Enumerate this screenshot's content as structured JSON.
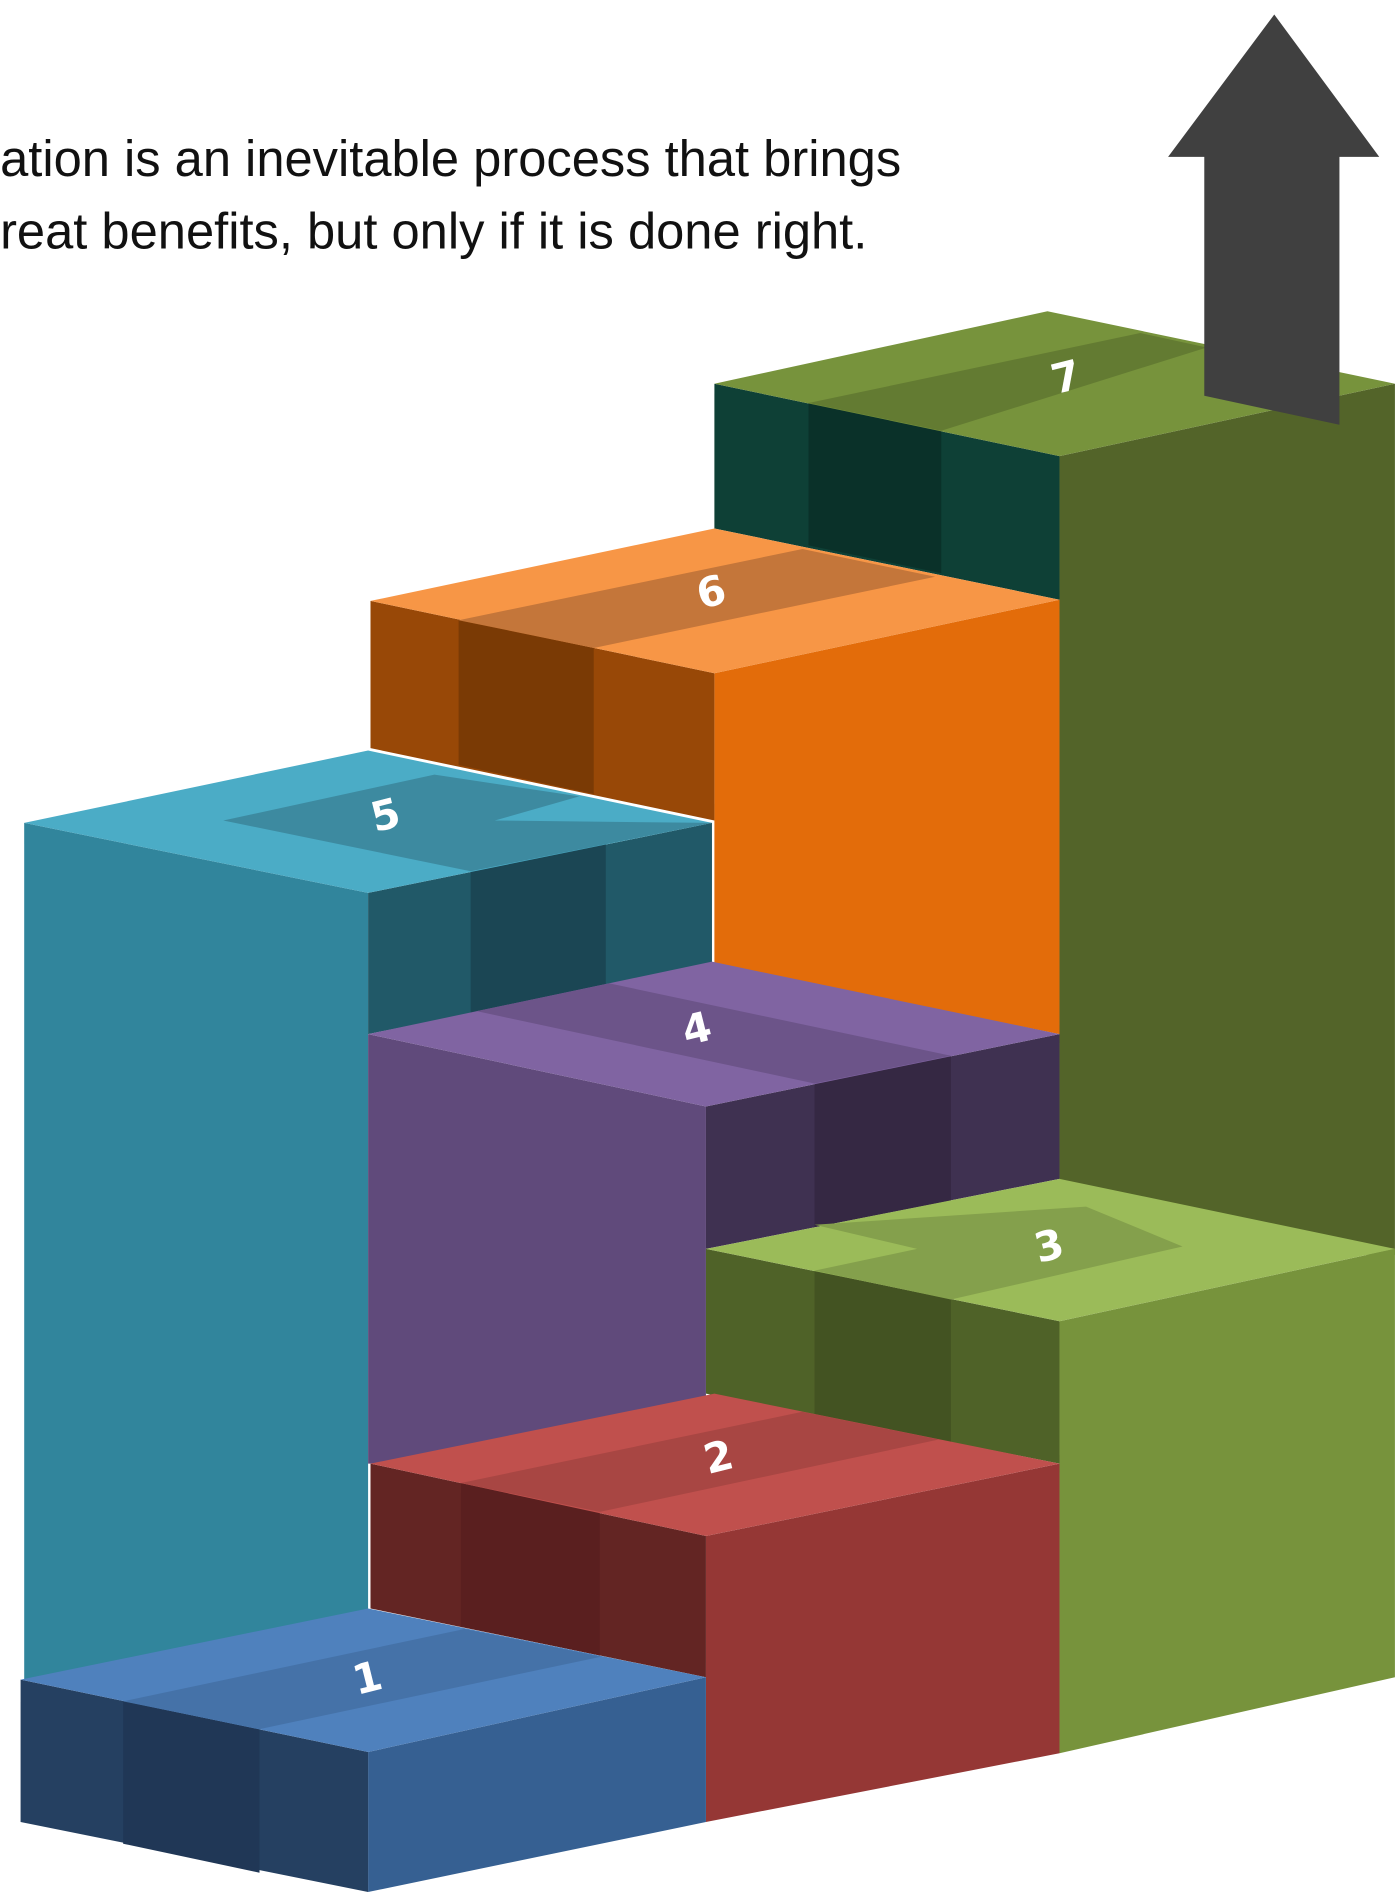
{
  "caption": {
    "lines": [
      "ation is an inevitable process that brings",
      "reat benefits, but only if it is done right."
    ]
  },
  "steps": [
    {
      "label": "1"
    },
    {
      "label": "2"
    },
    {
      "label": "3"
    },
    {
      "label": "4"
    },
    {
      "label": "5"
    },
    {
      "label": "6"
    },
    {
      "label": "7"
    }
  ]
}
